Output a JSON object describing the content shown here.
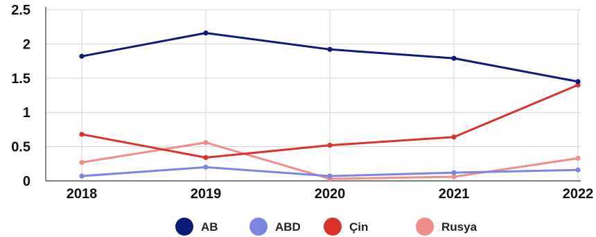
{
  "chart_data": {
    "type": "line",
    "x": [
      "2018",
      "2019",
      "2020",
      "2021",
      "2022"
    ],
    "series": [
      {
        "name": "AB",
        "color": "#0d1a7a",
        "values": [
          1.82,
          2.16,
          1.92,
          1.79,
          1.45
        ]
      },
      {
        "name": "ABD",
        "color": "#7c86e0",
        "values": [
          0.07,
          0.2,
          0.07,
          0.12,
          0.16
        ]
      },
      {
        "name": "Çin",
        "color": "#d9332c",
        "values": [
          0.68,
          0.34,
          0.52,
          0.64,
          1.4
        ]
      },
      {
        "name": "Rusya",
        "color": "#f08c8a",
        "values": [
          0.27,
          0.56,
          0.03,
          0.06,
          0.33
        ]
      }
    ],
    "y_ticks": [
      0,
      0.5,
      1,
      1.5,
      2,
      2.5
    ],
    "y_tick_labels": [
      "0",
      "0.5",
      "1",
      "1.5",
      "2",
      "2.5"
    ],
    "ylim": [
      0,
      2.5
    ],
    "grid": true,
    "legend_position": "bottom"
  }
}
